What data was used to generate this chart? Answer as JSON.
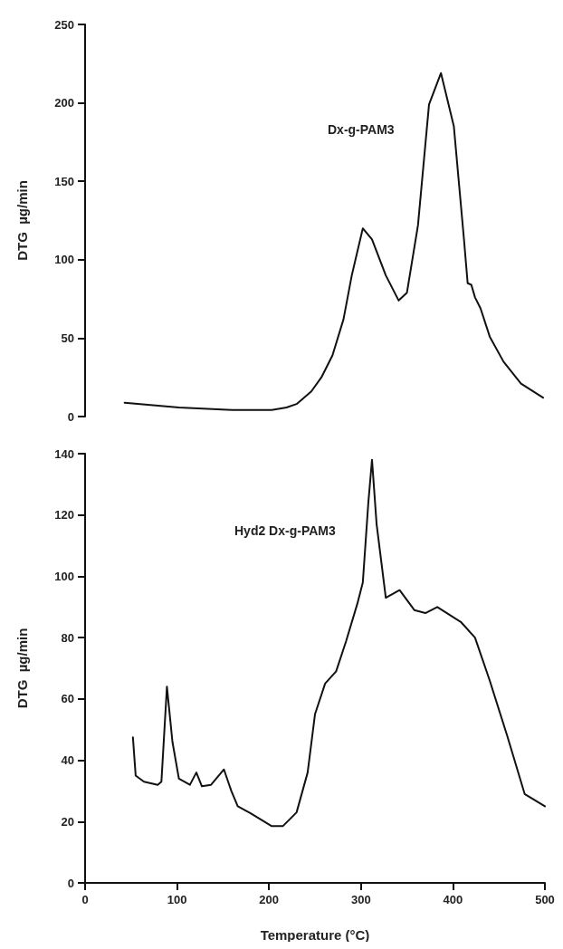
{
  "chart_data": [
    {
      "type": "line",
      "ylabel": "DTG  µg/min",
      "xlim": [
        0,
        500
      ],
      "ylim": [
        0,
        250
      ],
      "yticks": [
        0,
        50,
        100,
        150,
        200,
        250
      ],
      "tick_labels": "y",
      "grid": false,
      "marker": "none",
      "line_style": "solid",
      "annotations": [
        "Dx-g-PAM3"
      ],
      "series": [
        {
          "color": "#111111",
          "x": [
            43,
            102,
            160,
            203,
            219,
            230,
            246,
            257,
            269,
            281,
            290,
            302,
            312,
            327,
            341,
            350,
            362,
            374,
            387,
            401,
            412,
            416,
            420,
            424,
            430,
            440,
            455,
            474,
            498
          ],
          "values": [
            8.8,
            5.8,
            4.2,
            4.2,
            5.8,
            8,
            16,
            25,
            39,
            62,
            90,
            120,
            113,
            90,
            74,
            79,
            122,
            199,
            219,
            185,
            113,
            85,
            84,
            76,
            69,
            51,
            35,
            21,
            12
          ]
        }
      ]
    },
    {
      "type": "line",
      "xlabel": "Temperature (°C)",
      "ylabel": "DTG  µg/min",
      "xlim": [
        0,
        500
      ],
      "xticks": [
        0,
        100,
        200,
        300,
        400,
        500
      ],
      "ylim": [
        0,
        140
      ],
      "yticks": [
        0,
        20,
        40,
        60,
        80,
        100,
        120,
        140
      ],
      "grid": false,
      "marker": "none",
      "line_style": "solid",
      "annotations": [
        "Hyd2 Dx-g-PAM3"
      ],
      "series": [
        {
          "color": "#111111",
          "x": [
            52,
            55,
            64,
            79,
            83,
            89,
            95,
            102,
            114,
            121,
            127,
            137,
            151,
            159,
            166,
            180,
            203,
            215,
            230,
            242,
            250,
            261,
            273,
            284,
            296,
            302,
            308,
            312,
            317,
            327,
            342,
            358,
            370,
            383,
            409,
            424,
            440,
            459,
            478,
            500
          ],
          "values": [
            47.5,
            35,
            33,
            32,
            33,
            64,
            46,
            34,
            32,
            36,
            31.5,
            32,
            37,
            30,
            25,
            22.7,
            18.5,
            18.5,
            23,
            36,
            55,
            65,
            69,
            79,
            91,
            98,
            124,
            138,
            117,
            93,
            95.5,
            89,
            88,
            90,
            85,
            80,
            66,
            48,
            29,
            25
          ]
        }
      ]
    }
  ]
}
